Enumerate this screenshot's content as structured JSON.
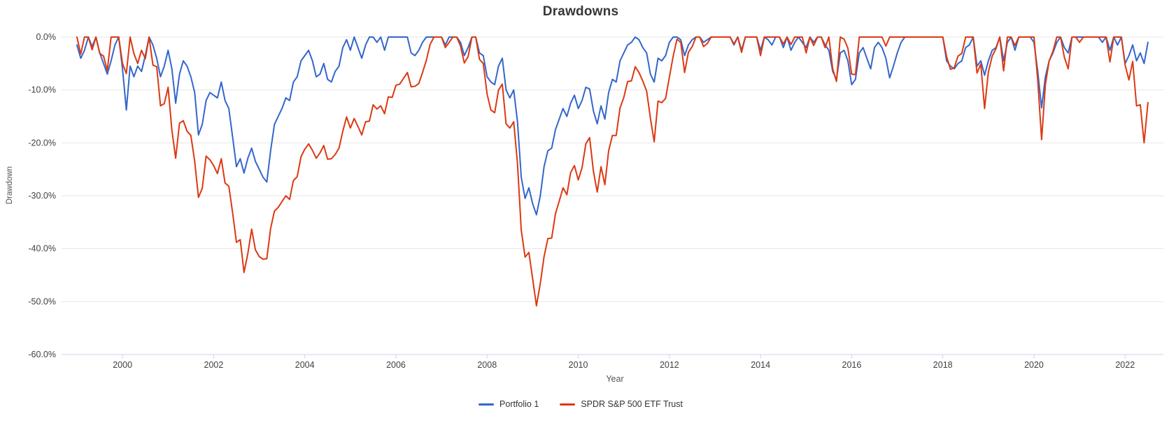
{
  "title": "Drawdowns",
  "x_axis": {
    "label": "Year",
    "tick_years": [
      2000,
      2002,
      2004,
      2006,
      2008,
      2010,
      2012,
      2014,
      2016,
      2018,
      2020,
      2022
    ]
  },
  "y_axis": {
    "label": "Drawdown",
    "tick_values": [
      0,
      -10,
      -20,
      -30,
      -40,
      -50,
      -60
    ],
    "tick_labels": [
      "0.0%",
      "-10.0%",
      "-20.0%",
      "-30.0%",
      "-40.0%",
      "-50.0%",
      "-60.0%"
    ]
  },
  "legend": [
    {
      "label": "Portfolio 1",
      "color": "#3366cc"
    },
    {
      "label": "SPDR S&P 500 ETF Trust",
      "color": "#dc3912"
    }
  ],
  "colors": {
    "gridline": "#e6e6e6",
    "axis_line": "#ccd6eb",
    "tick_text": "#3f3f3f"
  },
  "chart_data": {
    "type": "line",
    "title": "Drawdowns",
    "xlabel": "Year",
    "ylabel": "Drawdown",
    "x_start": "1999-01",
    "x_end": "2022-07",
    "x_frequency": "monthly",
    "xlim": [
      1998.77,
      2022.84
    ],
    "ylim": [
      -60,
      0
    ],
    "grid": true,
    "legend_position": "bottom",
    "y_unit": "percent",
    "series": [
      {
        "name": "Portfolio 1",
        "color": "#3366cc",
        "values": [
          -1.5,
          -4.0,
          -2.5,
          0,
          -1.8,
          0,
          -3.0,
          -5.0,
          -7.0,
          -4.5,
          -1.5,
          0,
          -6.0,
          -13.8,
          -5.5,
          -7.5,
          -5.5,
          -6.5,
          -3.5,
          0,
          -1.5,
          -4.0,
          -7.5,
          -5.5,
          -2.5,
          -6.0,
          -12.5,
          -7.0,
          -4.5,
          -5.5,
          -7.5,
          -10.5,
          -18.5,
          -16.5,
          -12.0,
          -10.5,
          -11.0,
          -11.5,
          -8.5,
          -12.0,
          -13.5,
          -19.0,
          -24.5,
          -23.0,
          -25.7,
          -22.9,
          -21.0,
          -23.5,
          -25.0,
          -26.5,
          -27.4,
          -21.5,
          -16.5,
          -15.0,
          -13.5,
          -11.5,
          -12.0,
          -8.5,
          -7.5,
          -4.5,
          -3.5,
          -2.5,
          -4.5,
          -7.5,
          -7.0,
          -5.0,
          -8.0,
          -8.5,
          -6.5,
          -5.5,
          -2.0,
          -0.5,
          -2.5,
          0,
          -2.0,
          -4.0,
          -1.5,
          0,
          0,
          -1.0,
          0,
          -2.5,
          0,
          0,
          0,
          0,
          0,
          0,
          -3.0,
          -3.5,
          -2.5,
          -1.0,
          0,
          0,
          0,
          0,
          0,
          -1.5,
          0,
          0,
          0,
          -1.0,
          -3.5,
          -2.0,
          0,
          0,
          -3.0,
          -3.5,
          -7.5,
          -8.5,
          -9.0,
          -5.5,
          -4.0,
          -10.0,
          -11.5,
          -10.0,
          -16.0,
          -26.5,
          -30.5,
          -28.5,
          -31.5,
          -33.6,
          -30.0,
          -24.5,
          -21.5,
          -21.0,
          -17.5,
          -15.5,
          -13.5,
          -15.0,
          -12.5,
          -11.0,
          -13.5,
          -12.0,
          -9.5,
          -9.8,
          -14.0,
          -16.4,
          -13.0,
          -15.5,
          -10.5,
          -8.0,
          -8.5,
          -4.5,
          -3.0,
          -1.5,
          -1.0,
          0,
          -0.5,
          -2.0,
          -3.0,
          -7.0,
          -8.5,
          -4.0,
          -4.5,
          -3.5,
          -1.0,
          0,
          0,
          -0.5,
          -3.5,
          -1.5,
          -0.5,
          0,
          0,
          -1.0,
          -0.5,
          0,
          0,
          0,
          0,
          0,
          0,
          -1.5,
          0,
          -2.5,
          0,
          0,
          0,
          0,
          -2.5,
          0,
          -0.5,
          -1.5,
          0,
          0,
          -2.0,
          0,
          -2.5,
          -1.0,
          0,
          -1.0,
          -2.0,
          0,
          -1.0,
          0,
          0,
          -1.5,
          -2.5,
          -6.5,
          -8.0,
          -3.0,
          -2.5,
          -4.5,
          -9.0,
          -8.0,
          -3.0,
          -2.0,
          -4.0,
          -6.0,
          -2.0,
          -1.0,
          -2.0,
          -4.0,
          -7.7,
          -5.5,
          -3.0,
          -1.0,
          0,
          0,
          0,
          0,
          0,
          0,
          0,
          0,
          0,
          0,
          0,
          -4.5,
          -5.5,
          -6.0,
          -5.0,
          -4.5,
          -2.0,
          -1.5,
          0,
          -5.5,
          -4.5,
          -7.2,
          -4.5,
          -2.5,
          -2.0,
          0,
          -4.5,
          -1.0,
          0,
          -2.5,
          0,
          0,
          0,
          0,
          -1.0,
          -6.5,
          -13.4,
          -7.5,
          -4.5,
          -3.0,
          -1.0,
          0,
          -2.0,
          -3.0,
          0,
          0,
          0,
          0,
          0,
          0,
          0,
          0,
          -1.0,
          0,
          -2.5,
          0,
          -1.5,
          0,
          -5.0,
          -3.5,
          -1.5,
          -4.5,
          -3.0,
          -5.0,
          -1.0
        ]
      },
      {
        "name": "SPDR S&P 500 ETF Trust",
        "color": "#dc3912",
        "values": [
          0,
          -3.2,
          0,
          0,
          -2.4,
          0,
          -3.1,
          -3.6,
          -6.3,
          0,
          0,
          0,
          -5.0,
          -6.9,
          0,
          -3.1,
          -5.0,
          -2.5,
          -4.1,
          0,
          -5.3,
          -5.6,
          -13.0,
          -12.6,
          -9.5,
          -17.6,
          -22.9,
          -16.3,
          -15.8,
          -17.8,
          -18.6,
          -23.5,
          -30.3,
          -28.6,
          -22.5,
          -23.2,
          -24.3,
          -25.8,
          -23.0,
          -27.6,
          -28.2,
          -33.3,
          -38.8,
          -38.3,
          -44.5,
          -40.9,
          -36.3,
          -40.2,
          -41.5,
          -42.0,
          -41.9,
          -36.2,
          -32.9,
          -32.2,
          -31.1,
          -30.0,
          -30.7,
          -27.1,
          -26.4,
          -22.6,
          -21.2,
          -20.2,
          -21.4,
          -22.9,
          -21.9,
          -20.5,
          -23.1,
          -23.0,
          -22.2,
          -21.0,
          -17.8,
          -15.1,
          -17.2,
          -15.4,
          -16.9,
          -18.5,
          -16.0,
          -15.9,
          -12.8,
          -13.6,
          -13.0,
          -14.5,
          -11.3,
          -11.4,
          -9.1,
          -8.9,
          -7.8,
          -6.7,
          -9.4,
          -9.3,
          -8.8,
          -6.7,
          -4.4,
          -1.4,
          0,
          0,
          0,
          -2.0,
          -1.0,
          0,
          0,
          -1.7,
          -4.9,
          -3.7,
          0,
          0,
          -4.2,
          -5.0,
          -10.8,
          -13.8,
          -14.3,
          -10.0,
          -8.9,
          -16.4,
          -17.2,
          -16.0,
          -23.9,
          -36.5,
          -41.6,
          -40.7,
          -45.7,
          -50.8,
          -46.6,
          -41.5,
          -38.1,
          -38.0,
          -33.4,
          -31.0,
          -28.5,
          -29.8,
          -25.6,
          -24.3,
          -27.0,
          -24.7,
          -20.2,
          -19.0,
          -25.4,
          -29.3,
          -24.5,
          -27.9,
          -21.5,
          -18.6,
          -18.6,
          -13.4,
          -11.4,
          -8.4,
          -8.3,
          -5.6,
          -6.7,
          -8.3,
          -10.2,
          -15.3,
          -19.8,
          -12.1,
          -12.4,
          -11.6,
          -7.6,
          -3.6,
          -0.4,
          -1.0,
          -6.7,
          -2.9,
          -1.8,
          0,
          0,
          -1.8,
          -1.2,
          0,
          0,
          0,
          0,
          0,
          0,
          -1.3,
          0,
          -2.9,
          0,
          0,
          0,
          0,
          -3.5,
          0,
          0,
          0,
          0,
          0,
          -1.3,
          0,
          -1.4,
          0,
          0,
          0,
          -3.0,
          0,
          -1.6,
          0,
          0,
          -2.0,
          0,
          -6.0,
          -8.4,
          0,
          -0.4,
          -2.1,
          -7.0,
          -7.1,
          0,
          0,
          0,
          0,
          0,
          0,
          0,
          -1.7,
          0,
          0,
          0,
          0,
          0,
          0,
          0,
          0,
          0,
          0,
          0,
          0,
          0,
          0,
          0,
          -3.7,
          -6.1,
          -5.8,
          -3.6,
          -3.1,
          0,
          0,
          0,
          -6.8,
          -5.1,
          -13.5,
          -6.6,
          -3.6,
          -2.2,
          0,
          -6.4,
          0,
          0,
          -1.6,
          0,
          0,
          0,
          0,
          0,
          -8.2,
          -19.4,
          -9.0,
          -4.5,
          -2.7,
          0,
          0,
          -3.8,
          -6.0,
          0,
          0,
          -1.0,
          0,
          0,
          0,
          0,
          0,
          0,
          0,
          -4.7,
          0,
          0,
          0,
          -5.3,
          -8.1,
          -4.6,
          -13.0,
          -12.8,
          -20.0,
          -12.4
        ]
      }
    ]
  }
}
